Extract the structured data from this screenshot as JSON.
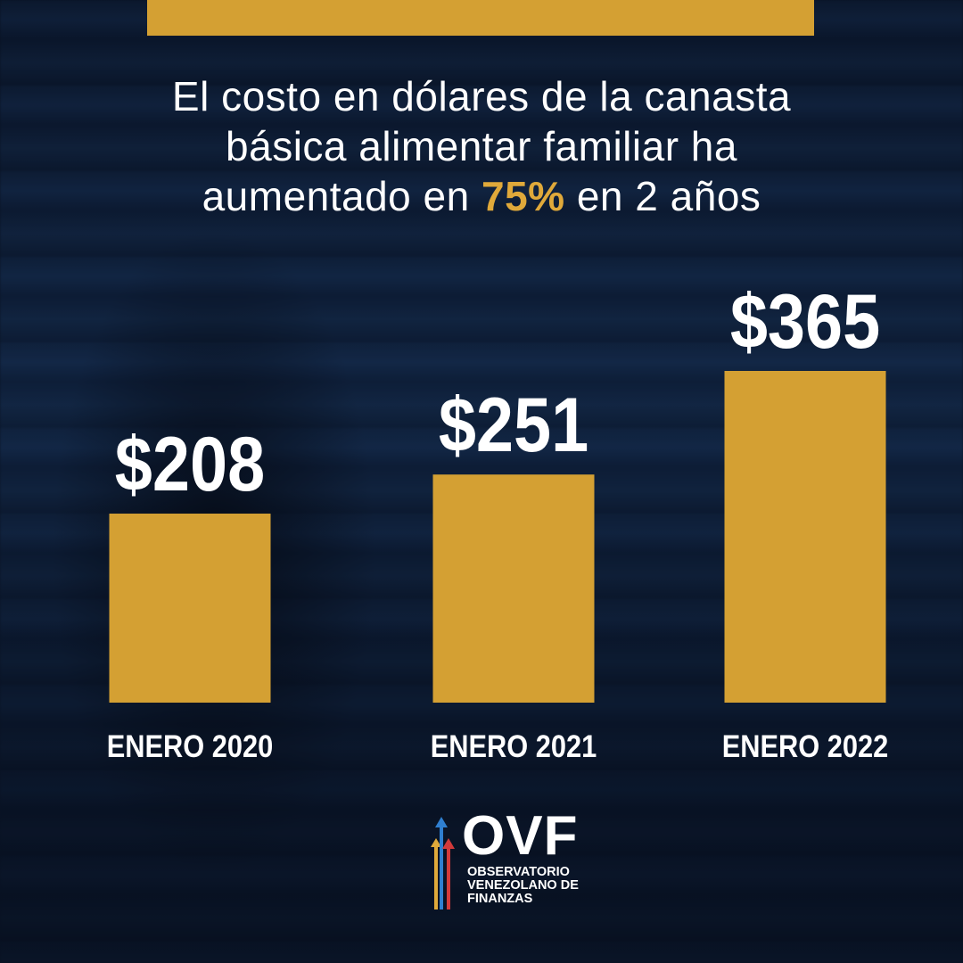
{
  "headline": {
    "line1": "El costo en dólares de la canasta",
    "line2": "básica alimentar familiar ha",
    "line3_before": "aumentado en ",
    "line3_highlight": "75%",
    "line3_after": " en 2 años"
  },
  "colors": {
    "accent": "#d4a033",
    "highlight": "#e0a93a",
    "text": "#ffffff",
    "background": "#0f213d"
  },
  "chart_data": {
    "type": "bar",
    "title": "",
    "xlabel": "",
    "ylabel": "",
    "categories": [
      "ENERO 2020",
      "ENERO 2021",
      "ENERO 2022"
    ],
    "values": [
      208,
      251,
      365
    ],
    "data_labels": [
      "$208",
      "$251",
      "$365"
    ],
    "unit": "USD",
    "ylim": [
      0,
      365
    ],
    "grid": false,
    "legend": "none"
  },
  "logo": {
    "name": "OVF",
    "line1": "OBSERVATORIO",
    "line2": "VENEZOLANO DE",
    "line3": "FINANZAS"
  }
}
